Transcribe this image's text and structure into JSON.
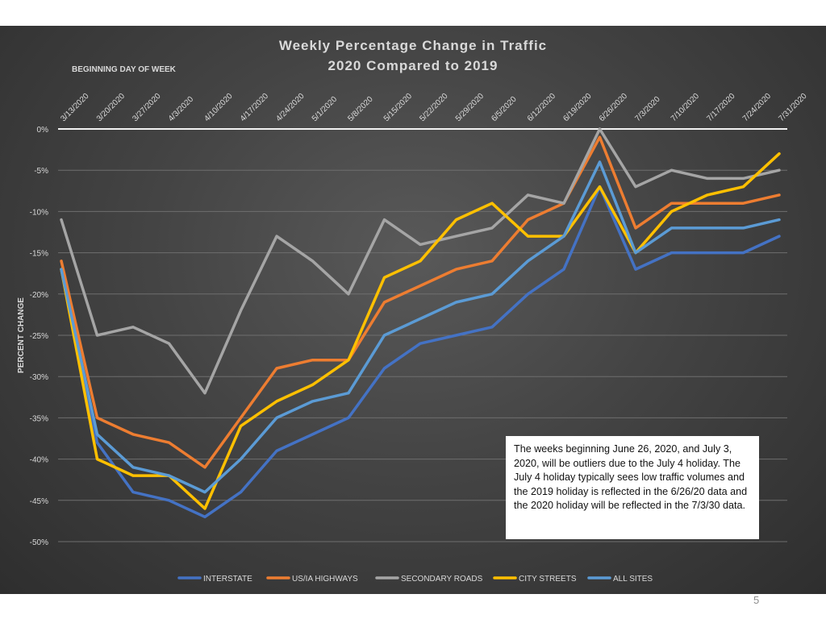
{
  "page": {
    "number": "5"
  },
  "annotation": {
    "text": "The weeks beginning June 26, 2020, and July 3, 2020, will be outliers due to the July 4 holiday. The July 4 holiday typically sees low traffic volumes and the 2019 holiday is reflected in the 6/26/20 data and the 2020 holiday will be reflected in the 7/3/30 data."
  },
  "chart_data": {
    "type": "line",
    "title": "Weekly Percentage Change in Traffic",
    "subtitle": "2020 Compared to 2019",
    "xlabel": "BEGINNING DAY OF WEEK",
    "ylabel": "PERCENT CHANGE",
    "x_axis_position": "top",
    "categories": [
      "3/13/2020",
      "3/20/2020",
      "3/27/2020",
      "4/3/2020",
      "4/10/2020",
      "4/17/2020",
      "4/24/2020",
      "5/1/2020",
      "5/8/2020",
      "5/15/2020",
      "5/22/2020",
      "5/29/2020",
      "6/5/2020",
      "6/12/2020",
      "6/19/2020",
      "6/26/2020",
      "7/3/2020",
      "7/10/2020",
      "7/17/2020",
      "7/24/2020",
      "7/31/2020"
    ],
    "ylim": [
      -50,
      0
    ],
    "yticks": [
      0,
      -5,
      -10,
      -15,
      -20,
      -25,
      -30,
      -35,
      -40,
      -45,
      -50
    ],
    "ytick_labels": [
      "0%",
      "-5%",
      "-10%",
      "-15%",
      "-20%",
      "-25%",
      "-30%",
      "-35%",
      "-40%",
      "-45%",
      "-50%"
    ],
    "grid": true,
    "legend_position": "bottom",
    "series": [
      {
        "name": "INTERSTATE",
        "color": "#4472c4",
        "values": [
          -17,
          -38,
          -44,
          -45,
          -47,
          -44,
          -39,
          -37,
          -35,
          -29,
          -26,
          -25,
          -24,
          -20,
          -17,
          -7,
          -17,
          -15,
          -15,
          -15,
          -13
        ]
      },
      {
        "name": "US/IA HIGHWAYS",
        "color": "#ed7d31",
        "values": [
          -16,
          -35,
          -37,
          -38,
          -41,
          -35,
          -29,
          -28,
          -28,
          -21,
          -19,
          -17,
          -16,
          -11,
          -9,
          -1,
          -12,
          -9,
          -9,
          -9,
          -8
        ]
      },
      {
        "name": "SECONDARY ROADS",
        "color": "#a5a5a5",
        "values": [
          -11,
          -25,
          -24,
          -26,
          -32,
          -22,
          -13,
          -16,
          -20,
          -11,
          -14,
          -13,
          -12,
          -8,
          -9,
          0,
          -7,
          -5,
          -6,
          -6,
          -5
        ]
      },
      {
        "name": "CITY STREETS",
        "color": "#ffc000",
        "values": [
          -17,
          -40,
          -42,
          -42,
          -46,
          -36,
          -33,
          -31,
          -28,
          -18,
          -16,
          -11,
          -9,
          -13,
          -13,
          -7,
          -15,
          -10,
          -8,
          -7,
          -3
        ]
      },
      {
        "name": "ALL SITES",
        "color": "#5b9bd5",
        "values": [
          -17,
          -37,
          -41,
          -42,
          -44,
          -40,
          -35,
          -33,
          -32,
          -25,
          -23,
          -21,
          -20,
          -16,
          -13,
          -4,
          -15,
          -12,
          -12,
          -12,
          -11
        ]
      }
    ]
  }
}
